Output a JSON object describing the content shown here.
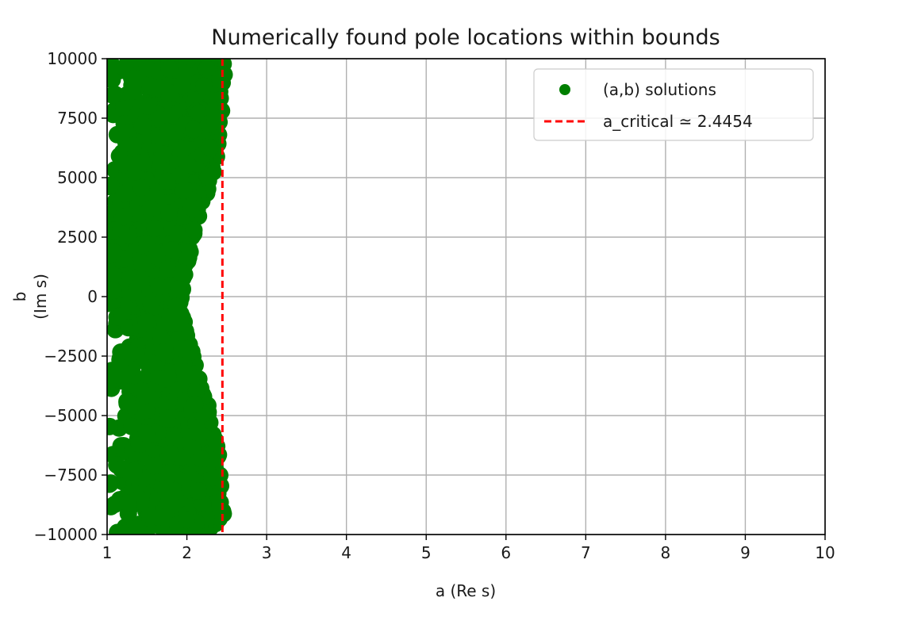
{
  "chart_data": {
    "type": "scatter",
    "title": "Numerically found pole locations within bounds",
    "xlabel": "a (Re s)",
    "ylabel_line1": "b",
    "ylabel_line2": "(Im s)",
    "xlim": [
      1,
      10
    ],
    "ylim": [
      -10000,
      10000
    ],
    "xticks": [
      "1",
      "2",
      "3",
      "4",
      "5",
      "6",
      "7",
      "8",
      "9",
      "10"
    ],
    "yticks": [
      "10000",
      "7500",
      "5000",
      "2500",
      "0",
      "−2500",
      "−5000",
      "−7500",
      "−10000"
    ],
    "grid": true,
    "legend_position": "top-right",
    "series": [
      {
        "name": "(a,b) solutions",
        "kind": "scatter",
        "color": "#007f00",
        "x_range": [
          1.0,
          2.5
        ],
        "y_range": [
          -10000,
          10000
        ],
        "right_edge_profile": {
          "b": [
            -10000,
            -9000,
            -8000,
            -7000,
            -6000,
            -5000,
            -4000,
            -3000,
            -2000,
            -1000,
            0,
            1000,
            2000,
            3000,
            4000,
            5000,
            6000,
            7000,
            8000,
            9000,
            10000
          ],
          "a_max": [
            2.49,
            2.46,
            2.44,
            2.42,
            2.36,
            2.3,
            2.22,
            2.12,
            2.07,
            1.96,
            1.93,
            1.98,
            2.07,
            2.1,
            2.22,
            2.32,
            2.38,
            2.42,
            2.44,
            2.47,
            2.49
          ]
        }
      },
      {
        "name": "a_critical ≃ 2.4454",
        "kind": "vline",
        "x": 2.4454,
        "color": "#ff0000",
        "linestyle": "dashed"
      }
    ]
  }
}
